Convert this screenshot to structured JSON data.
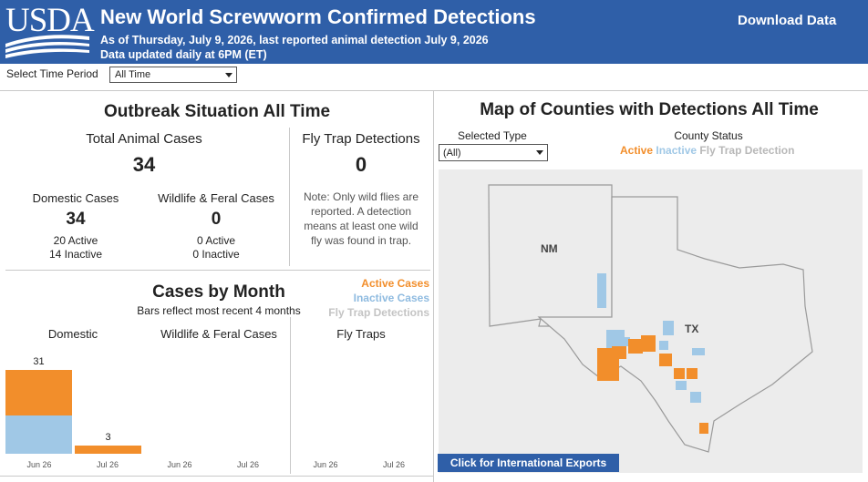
{
  "header": {
    "logo_text": "USDA",
    "title": "New World Screwworm Confirmed Detections",
    "subtitle": "As of Thursday, July 9, 2026, last reported animal detection July 9, 2026",
    "subtitle2": "Data updated daily at 6PM (ET)",
    "download_label": "Download Data"
  },
  "filters": {
    "time_period_label": "Select Time Period",
    "time_period_value": "All Time"
  },
  "outbreak": {
    "title": "Outbreak Situation All Time",
    "total_label": "Total Animal Cases",
    "total_value": "34",
    "domestic_label": "Domestic Cases",
    "domestic_value": "34",
    "domestic_active": "20 Active",
    "domestic_inactive": "14 Inactive",
    "wildlife_label": "Wildlife & Feral Cases",
    "wildlife_value": "0",
    "wildlife_active": "0 Active",
    "wildlife_inactive": "0 Inactive",
    "fly_label": "Fly Trap Detections",
    "fly_value": "0",
    "fly_note_1": "Note: Only wild flies are",
    "fly_note_2": "reported. A detection",
    "fly_note_3": "means at least one wild",
    "fly_note_4": "fly was found in trap."
  },
  "cases_by_month": {
    "title": "Cases by Month",
    "subtitle": "Bars reflect most recent 4 months",
    "legend_active": "Active Cases",
    "legend_inactive": "Inactive Cases",
    "legend_fly": "Fly Trap Detections",
    "col_domestic": "Domestic",
    "col_wildlife": "Wildlife & Feral Cases",
    "col_fly": "Fly Traps",
    "months": [
      "Jun 26",
      "Jul 26"
    ]
  },
  "chart_data": {
    "type": "bar",
    "title": "Cases by Month",
    "categories": [
      "Jun 26",
      "Jul 26"
    ],
    "panels": [
      {
        "name": "Domestic",
        "totals": [
          31,
          3
        ],
        "series": [
          {
            "name": "Active Cases",
            "values": [
              17,
              3
            ]
          },
          {
            "name": "Inactive Cases",
            "values": [
              14,
              0
            ]
          }
        ]
      },
      {
        "name": "Wildlife & Feral Cases",
        "totals": [
          0,
          0
        ],
        "series": [
          {
            "name": "Active Cases",
            "values": [
              0,
              0
            ]
          },
          {
            "name": "Inactive Cases",
            "values": [
              0,
              0
            ]
          }
        ]
      },
      {
        "name": "Fly Traps",
        "totals": [
          0,
          0
        ],
        "series": [
          {
            "name": "Fly Trap Detections",
            "values": [
              0,
              0
            ]
          }
        ]
      }
    ],
    "ylim": [
      0,
      31
    ]
  },
  "map": {
    "title": "Map of Counties with Detections All Time",
    "selected_type_label": "Selected Type",
    "selected_type_value": "(All)",
    "county_status_label": "County Status",
    "legend_active": "Active",
    "legend_inactive": "Inactive",
    "legend_fly": "Fly Trap Detection",
    "state_nm": "NM",
    "state_tx": "TX",
    "export_label": "Click for International Exports"
  },
  "colors": {
    "header": "#2f5fa8",
    "active": "#f28e2b",
    "inactive": "#a0c8e6",
    "fly": "#b8b8b8"
  }
}
